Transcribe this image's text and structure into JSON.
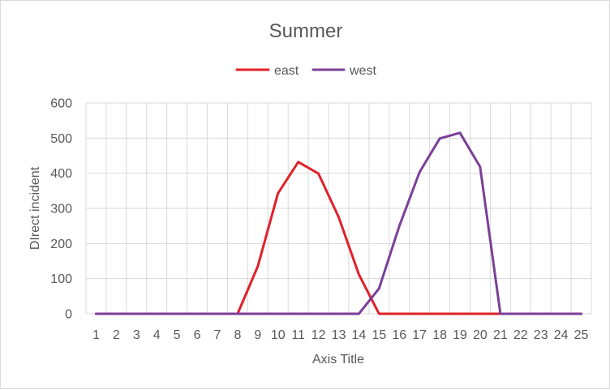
{
  "chart_data": {
    "type": "line",
    "title": "Summer",
    "xlabel": "Axis Title",
    "ylabel": "DIrect incident",
    "categories": [
      "1",
      "2",
      "3",
      "4",
      "5",
      "6",
      "7",
      "8",
      "9",
      "10",
      "11",
      "12",
      "13",
      "14",
      "15",
      "16",
      "17",
      "18",
      "19",
      "20",
      "21",
      "22",
      "23",
      "24",
      "25"
    ],
    "series": [
      {
        "name": "east",
        "color": "#e0212a",
        "values": [
          0,
          0,
          0,
          0,
          0,
          0,
          0,
          0,
          135,
          343,
          432,
          399,
          275,
          112,
          0,
          0,
          0,
          0,
          0,
          0,
          0,
          0,
          0,
          0,
          0
        ]
      },
      {
        "name": "west",
        "color": "#7b3f98",
        "values": [
          0,
          0,
          0,
          0,
          0,
          0,
          0,
          0,
          0,
          0,
          0,
          0,
          0,
          0,
          72,
          250,
          403,
          499,
          515,
          418,
          0,
          0,
          0,
          0,
          0
        ]
      }
    ],
    "ylim": [
      0,
      600
    ],
    "yticks": [
      0,
      100,
      200,
      300,
      400,
      500,
      600
    ],
    "grid": true,
    "legend_position": "top"
  }
}
